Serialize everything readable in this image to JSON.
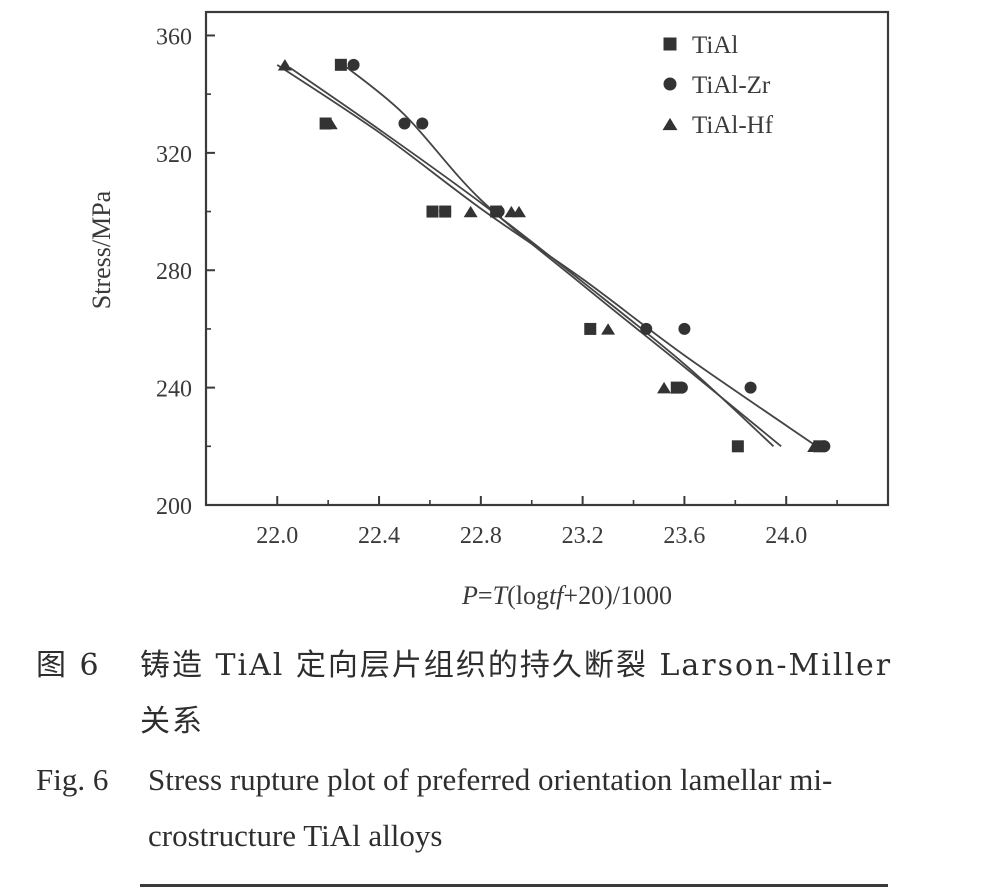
{
  "chart_data": {
    "type": "scatter",
    "ylabel": "Stress/MPa",
    "xlabel": "P=T(logtf+20)/1000",
    "xlabel_parts": {
      "prefix": "P=T(log",
      "italic": "tf",
      "suffix": "+20)/1000"
    },
    "xlim": [
      21.72,
      24.4
    ],
    "ylim": [
      200,
      368
    ],
    "xticks": [
      "22.0",
      "22.4",
      "22.8",
      "23.2",
      "23.6",
      "24.0"
    ],
    "yticks": [
      "200",
      "240",
      "280",
      "320",
      "360"
    ],
    "legend_position": "top-right",
    "series": [
      {
        "name": "TiAl",
        "marker": "square",
        "points": [
          [
            22.25,
            350
          ],
          [
            22.19,
            330
          ],
          [
            22.61,
            300
          ],
          [
            22.66,
            300
          ],
          [
            22.86,
            300
          ],
          [
            23.23,
            260
          ],
          [
            23.57,
            240
          ],
          [
            23.81,
            220
          ],
          [
            24.13,
            220
          ]
        ],
        "fit": [
          [
            22.05,
            349
          ],
          [
            22.4,
            328
          ],
          [
            22.8,
            303
          ],
          [
            23.2,
            276
          ],
          [
            23.6,
            248
          ],
          [
            23.95,
            220
          ]
        ]
      },
      {
        "name": "TiAl-Zr",
        "marker": "circle",
        "points": [
          [
            22.3,
            350
          ],
          [
            22.5,
            330
          ],
          [
            22.57,
            330
          ],
          [
            22.66,
            300
          ],
          [
            22.87,
            300
          ],
          [
            23.45,
            260
          ],
          [
            23.6,
            260
          ],
          [
            23.59,
            240
          ],
          [
            23.86,
            240
          ],
          [
            24.15,
            220
          ]
        ],
        "fit": [
          [
            22.26,
            350
          ],
          [
            22.5,
            333
          ],
          [
            22.8,
            304
          ],
          [
            23.2,
            275
          ],
          [
            23.6,
            247
          ],
          [
            23.98,
            220
          ]
        ]
      },
      {
        "name": "TiAl-Hf",
        "marker": "triangle",
        "points": [
          [
            22.03,
            350
          ],
          [
            22.21,
            330
          ],
          [
            22.76,
            300
          ],
          [
            22.92,
            300
          ],
          [
            22.95,
            300
          ],
          [
            23.3,
            260
          ],
          [
            23.52,
            240
          ],
          [
            24.11,
            220
          ]
        ],
        "fit": [
          [
            22.0,
            350
          ],
          [
            22.4,
            327
          ],
          [
            22.8,
            301
          ],
          [
            23.2,
            277
          ],
          [
            23.6,
            251
          ],
          [
            24.12,
            220
          ]
        ]
      }
    ]
  },
  "caption": {
    "cn_label": "图 6",
    "cn_line1": "铸造 TiAl 定向层片组织的持久断裂 Larson-Miller",
    "cn_line2": "关系",
    "en_label": "Fig. 6",
    "en_line1": "Stress rupture plot of preferred orientation lamellar mi-",
    "en_line2": "crostructure TiAl alloys"
  }
}
